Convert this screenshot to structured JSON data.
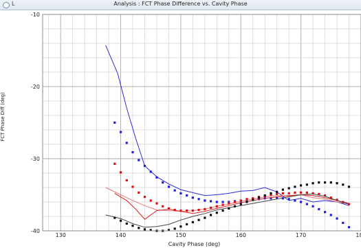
{
  "window": {
    "label": "L",
    "title": "Analysis : FCT Phase Difference vs. Cavity Phase"
  },
  "chart_data": {
    "type": "line",
    "title": "Analysis : FCT Phase Difference vs. Cavity Phase",
    "xlabel": "Cavity Phase (deg)",
    "ylabel": "FCT Phase Diff (deg)",
    "xlim": [
      127,
      180
    ],
    "ylim": [
      -40,
      -10
    ],
    "xticks": [
      130,
      140,
      150,
      160,
      170,
      180
    ],
    "xtick_labels": [
      "130",
      "140",
      "150",
      "160",
      "170",
      "180"
    ],
    "yticks": [
      -40,
      -30,
      -20,
      -10
    ],
    "ytick_labels": [
      "-40",
      "-30",
      "-20",
      "-10"
    ],
    "grid": true,
    "series": [
      {
        "style": "line",
        "color": "#2b2bd6",
        "x": [
          137.5,
          139.5,
          141.0,
          142.5,
          144.0,
          146.0,
          148.0,
          150.0,
          152.0,
          154.0,
          156.0,
          158.0,
          160.0,
          162.0,
          164.0,
          166.0,
          168.0,
          170.0,
          172.0,
          174.0,
          176.0,
          178.0
        ],
        "y": [
          -14.3,
          -18.2,
          -23.0,
          -27.2,
          -31.0,
          -32.5,
          -33.5,
          -34.3,
          -34.7,
          -35.1,
          -35.0,
          -34.8,
          -34.5,
          -34.4,
          -34.0,
          -34.6,
          -35.8,
          -35.5,
          -36.0,
          -35.8,
          -36.0,
          -36.5
        ]
      },
      {
        "style": "dotted",
        "color": "#1f1fe0",
        "x": [
          139.0,
          140.0,
          141.0,
          142.0,
          143.0,
          144.0,
          145.0,
          146.0,
          147.0,
          148.0,
          149.0,
          150.0,
          151.0,
          152.0,
          153.0,
          154.0,
          155.0,
          156.0,
          157.0,
          158.0,
          159.0,
          160.0,
          161.0,
          162.0,
          163.0,
          164.0,
          165.0,
          166.0,
          167.0,
          168.0,
          169.0,
          170.0,
          171.0,
          172.0,
          173.0,
          174.0,
          175.0,
          176.0,
          177.0,
          178.0
        ],
        "y": [
          -25.0,
          -26.3,
          -27.8,
          -29.1,
          -30.2,
          -31.0,
          -31.8,
          -32.6,
          -33.3,
          -33.9,
          -34.4,
          -34.8,
          -35.1,
          -35.4,
          -35.6,
          -35.8,
          -35.9,
          -36.0,
          -36.0,
          -36.0,
          -35.9,
          -35.9,
          -35.8,
          -35.7,
          -35.6,
          -35.5,
          -35.5,
          -35.4,
          -35.5,
          -35.6,
          -35.8,
          -36.0,
          -36.3,
          -36.6,
          -37.0,
          -37.4,
          -37.8,
          -38.3,
          -38.9,
          -39.5
        ]
      },
      {
        "style": "line",
        "color": "#e87a7a",
        "x": [
          137.5,
          140.0,
          142.0,
          144.0,
          146.0,
          148.0,
          150.0,
          152.0,
          154.0,
          156.0,
          158.0,
          160.0,
          162.0,
          164.0,
          166.0,
          168.0,
          170.0,
          172.0,
          174.0,
          176.0,
          178.0
        ],
        "y": [
          -34.0,
          -35.0,
          -35.8,
          -36.5,
          -37.1,
          -37.2,
          -37.3,
          -37.2,
          -37.0,
          -36.6,
          -36.3,
          -35.9,
          -35.6,
          -35.3,
          -35.1,
          -35.2,
          -35.0,
          -35.4,
          -35.6,
          -36.0,
          -36.3
        ]
      },
      {
        "style": "line",
        "color": "#d62020",
        "x": [
          139.0,
          141.0,
          142.5,
          144.0,
          146.0,
          148.0,
          150.0,
          152.0,
          154.0,
          156.0,
          158.0,
          160.0,
          162.0,
          164.0,
          166.0,
          168.0,
          170.0,
          172.0,
          174.0,
          176.0,
          178.0
        ],
        "y": [
          -34.8,
          -35.8,
          -37.0,
          -38.4,
          -37.2,
          -37.0,
          -37.3,
          -37.6,
          -37.3,
          -36.9,
          -36.5,
          -36.1,
          -35.8,
          -35.5,
          -35.3,
          -35.1,
          -35.0,
          -35.1,
          -35.4,
          -35.8,
          -36.2
        ]
      },
      {
        "style": "dotted",
        "color": "#e01010",
        "x": [
          139.0,
          140.0,
          141.0,
          142.0,
          143.0,
          144.0,
          145.0,
          146.0,
          147.0,
          148.0,
          149.0,
          150.0,
          151.0,
          152.0,
          153.0,
          154.0,
          155.0,
          156.0,
          157.0,
          158.0,
          159.0,
          160.0,
          161.0,
          162.0,
          163.0,
          164.0,
          165.0,
          166.0,
          167.0,
          168.0,
          169.0,
          170.0,
          171.0,
          172.0,
          173.0,
          174.0,
          175.0,
          176.0,
          177.0,
          178.0
        ],
        "y": [
          -30.7,
          -31.9,
          -33.0,
          -33.9,
          -34.7,
          -35.3,
          -35.8,
          -36.2,
          -36.6,
          -36.9,
          -37.1,
          -37.2,
          -37.2,
          -37.2,
          -37.1,
          -37.0,
          -36.8,
          -36.6,
          -36.4,
          -36.2,
          -36.0,
          -35.8,
          -35.6,
          -35.5,
          -35.3,
          -35.2,
          -35.0,
          -34.9,
          -34.8,
          -34.8,
          -34.7,
          -34.7,
          -34.7,
          -34.8,
          -34.9,
          -35.1,
          -35.4,
          -35.7,
          -36.0,
          -36.3
        ]
      },
      {
        "style": "line",
        "color": "#444444",
        "x": [
          137.5,
          140.0,
          142.0,
          144.0,
          146.0,
          148.0,
          150.0,
          152.0,
          154.0,
          156.0,
          158.0,
          160.0,
          162.0,
          164.0,
          166.0,
          168.0,
          170.0,
          172.0,
          174.0,
          176.0,
          178.0
        ],
        "y": [
          -37.8,
          -38.3,
          -39.0,
          -39.5,
          -39.4,
          -39.1,
          -38.5,
          -38.0,
          -37.6,
          -37.1,
          -36.8,
          -36.5,
          -36.2,
          -35.9,
          -35.6,
          -35.3,
          -35.0,
          -34.9,
          -35.2,
          -35.8,
          -36.3
        ]
      },
      {
        "style": "dotted",
        "color": "#111111",
        "x": [
          139.0,
          140.0,
          141.0,
          142.0,
          143.0,
          144.0,
          145.0,
          146.0,
          147.0,
          148.0,
          149.0,
          150.0,
          151.0,
          152.0,
          153.0,
          154.0,
          155.0,
          156.0,
          157.0,
          158.0,
          159.0,
          160.0,
          161.0,
          162.0,
          163.0,
          164.0,
          165.0,
          166.0,
          167.0,
          168.0,
          169.0,
          170.0,
          171.0,
          172.0,
          173.0,
          174.0,
          175.0,
          176.0,
          177.0,
          178.0
        ],
        "y": [
          -38.2,
          -38.6,
          -39.0,
          -39.3,
          -39.6,
          -39.8,
          -39.9,
          -40.0,
          -40.0,
          -39.9,
          -39.7,
          -39.4,
          -39.1,
          -38.8,
          -38.5,
          -38.2,
          -37.8,
          -37.5,
          -37.2,
          -36.9,
          -36.6,
          -36.3,
          -36.0,
          -35.7,
          -35.4,
          -35.1,
          -34.8,
          -34.6,
          -34.3,
          -34.1,
          -33.9,
          -33.7,
          -33.6,
          -33.4,
          -33.3,
          -33.3,
          -33.3,
          -33.4,
          -33.6,
          -33.9
        ]
      }
    ]
  }
}
